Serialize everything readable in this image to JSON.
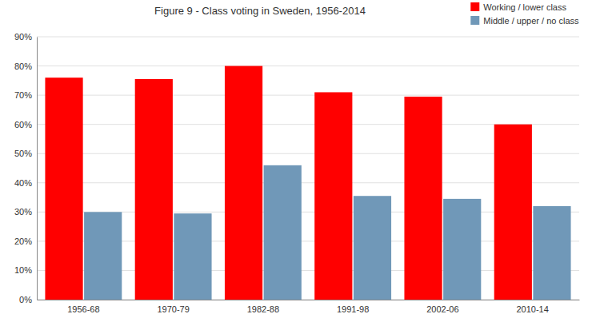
{
  "chart_data": {
    "type": "bar",
    "title": "Figure 9 - Class voting in Sweden, 1956-2014",
    "categories": [
      "1956-68",
      "1970-79",
      "1982-88",
      "1991-98",
      "2002-06",
      "2010-14"
    ],
    "series": [
      {
        "name": "Working / lower class",
        "color": "#FF0000",
        "values": [
          0.76,
          0.755,
          0.8,
          0.71,
          0.695,
          0.6
        ]
      },
      {
        "name": "Middle / upper / no class",
        "color": "#7098B8",
        "values": [
          0.3,
          0.295,
          0.46,
          0.355,
          0.345,
          0.32
        ]
      }
    ],
    "ylim": [
      0,
      0.9
    ],
    "yticks": [
      {
        "value": 0,
        "label": "0%"
      },
      {
        "value": 0.1,
        "label": "10%"
      },
      {
        "value": 0.2,
        "label": "20%"
      },
      {
        "value": 0.3,
        "label": "30%"
      },
      {
        "value": 0.4,
        "label": "40%"
      },
      {
        "value": 0.5,
        "label": "50%"
      },
      {
        "value": 0.6,
        "label": "60%"
      },
      {
        "value": 0.7,
        "label": "70%"
      },
      {
        "value": 0.8,
        "label": "80%"
      },
      {
        "value": 0.9,
        "label": "90%"
      }
    ],
    "grid": true,
    "legend": "upper right"
  }
}
